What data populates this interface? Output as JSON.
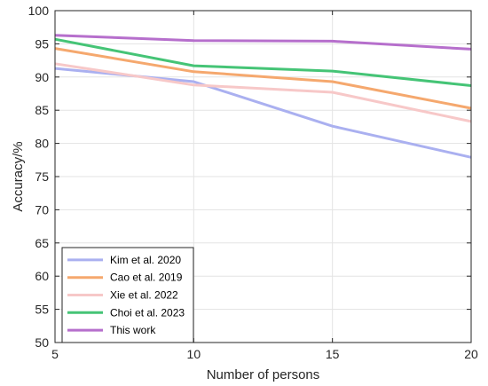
{
  "chart_data": {
    "type": "line",
    "x": [
      5,
      10,
      15,
      20
    ],
    "xlabel": "Number of persons",
    "ylabel": "Accuracy/%",
    "xlim": [
      5,
      20
    ],
    "ylim": [
      50,
      100
    ],
    "xticks": [
      5,
      10,
      15,
      20
    ],
    "yticks": [
      50,
      55,
      60,
      65,
      70,
      75,
      80,
      85,
      90,
      95,
      100
    ],
    "grid": true,
    "legend_position": "bottom-left",
    "series": [
      {
        "name": "Kim et al. 2020",
        "color": "#aab0f0",
        "values": [
          91.3,
          89.3,
          82.6,
          77.9
        ]
      },
      {
        "name": "Cao et al. 2019",
        "color": "#f5a86e",
        "values": [
          94.3,
          90.8,
          89.3,
          85.3
        ]
      },
      {
        "name": "Xie  et al. 2022",
        "color": "#f7c8c8",
        "values": [
          92.0,
          88.8,
          87.7,
          83.3
        ]
      },
      {
        "name": "Choi et al. 2023",
        "color": "#45c476",
        "values": [
          95.7,
          91.7,
          90.9,
          88.7
        ]
      },
      {
        "name": "This work",
        "color": "#b66fcc",
        "values": [
          96.3,
          95.5,
          95.4,
          94.2
        ]
      }
    ]
  }
}
